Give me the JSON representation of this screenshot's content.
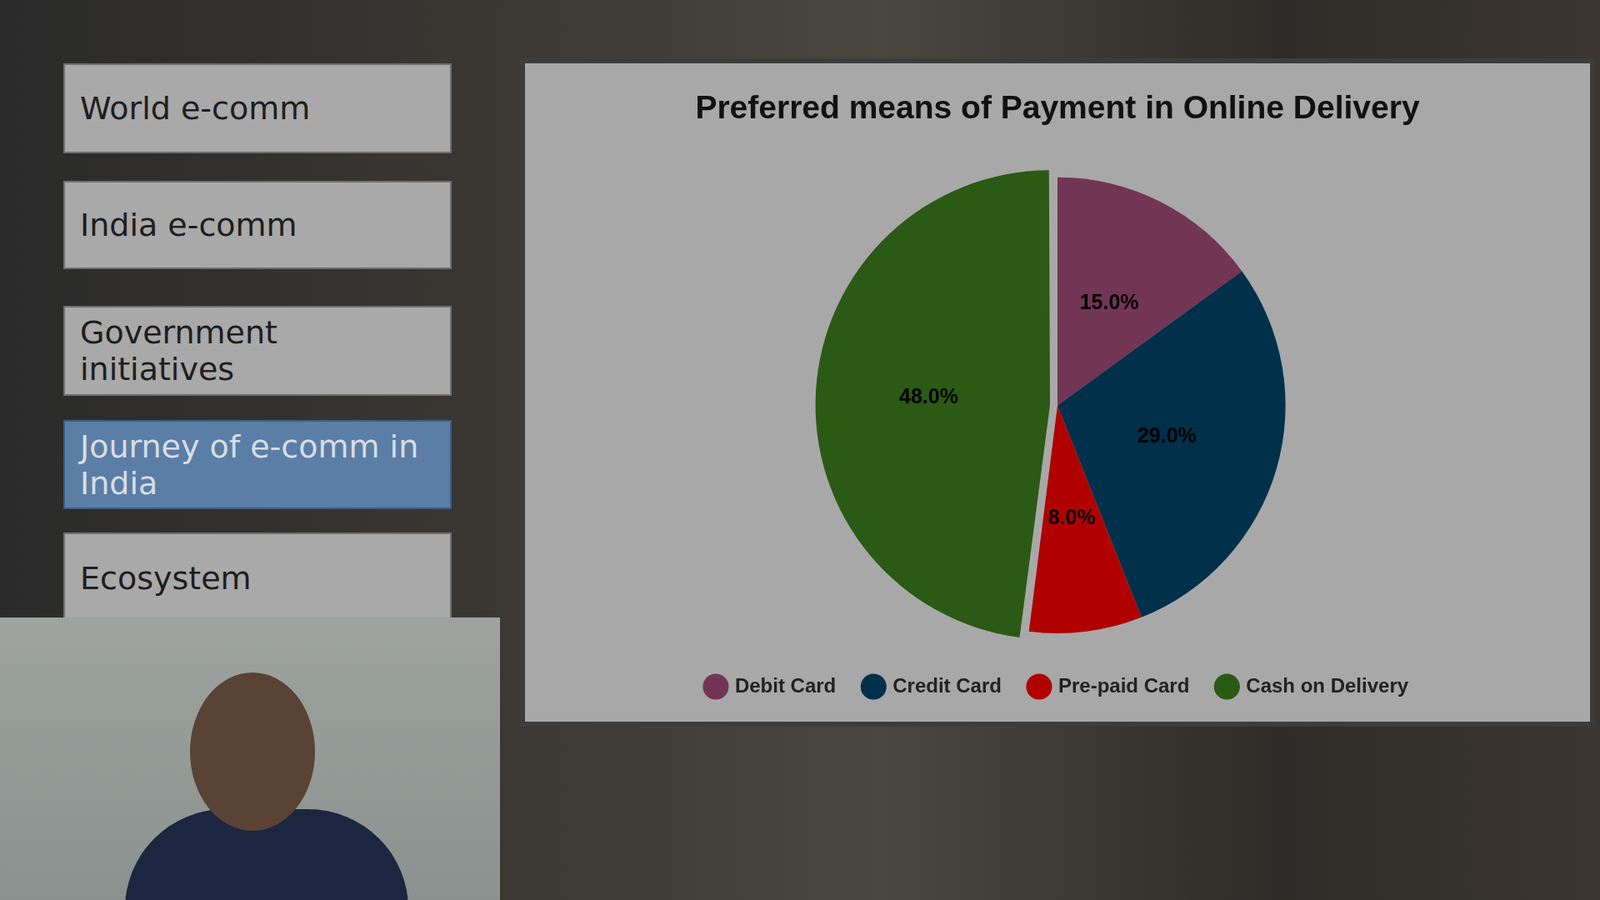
{
  "sidebar": {
    "items": [
      "World e-comm",
      "India e-comm",
      "Government initiatives",
      "Journey of e-comm in India",
      "Ecosystem"
    ],
    "selected": "Journey of e-comm in India"
  },
  "chart_data": {
    "type": "pie",
    "title": "Preferred means of Payment in Online Delivery",
    "categories": [
      "Debit Card",
      "Credit Card",
      "Pre-paid Card",
      "Cash on Delivery"
    ],
    "values": [
      15,
      29,
      8,
      48
    ],
    "value_labels": [
      "15.0%",
      "29.0%",
      "8.0%",
      "48.0%"
    ],
    "colors": [
      "#733554",
      "#00304a",
      "#b00000",
      "#2a5a14"
    ],
    "data_labels": true,
    "legend": "bottom"
  }
}
